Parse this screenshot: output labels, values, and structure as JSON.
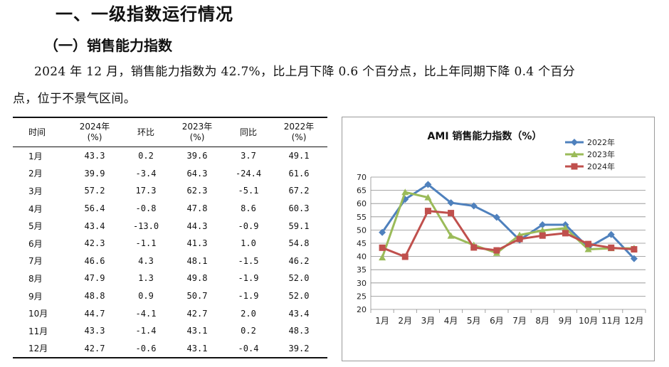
{
  "heading1": "一、一级指数运行情况",
  "heading2": "（一）销售能力指数",
  "paragraph_line1": "2024 年 12 月，销售能力指数为 42.7%，比上月下降 0.6 个百分点，比上年同期下降 0.4 个百分",
  "paragraph_line2": "点，位于不景气区间。",
  "table": {
    "headers": {
      "time": "时间",
      "y2024_a": "2024年",
      "y2024_b": "(%)",
      "mom": "环比",
      "y2023_a": "2023年",
      "y2023_b": "(%)",
      "yoy": "同比",
      "y2022_a": "2022年",
      "y2022_b": "(%)"
    },
    "rows": [
      {
        "month": "1月",
        "v2024": "43.3",
        "mom": "0.2",
        "v2023": "39.6",
        "yoy": "3.7",
        "v2022": "49.1"
      },
      {
        "month": "2月",
        "v2024": "39.9",
        "mom": "-3.4",
        "v2023": "64.3",
        "yoy": "-24.4",
        "v2022": "61.6"
      },
      {
        "month": "3月",
        "v2024": "57.2",
        "mom": "17.3",
        "v2023": "62.3",
        "yoy": "-5.1",
        "v2022": "67.2"
      },
      {
        "month": "4月",
        "v2024": "56.4",
        "mom": "-0.8",
        "v2023": "47.8",
        "yoy": "8.6",
        "v2022": "60.3"
      },
      {
        "month": "5月",
        "v2024": "43.4",
        "mom": "-13.0",
        "v2023": "44.3",
        "yoy": "-0.9",
        "v2022": "59.1"
      },
      {
        "month": "6月",
        "v2024": "42.3",
        "mom": "-1.1",
        "v2023": "41.3",
        "yoy": "1.0",
        "v2022": "54.8"
      },
      {
        "month": "7月",
        "v2024": "46.6",
        "mom": "4.3",
        "v2023": "48.1",
        "yoy": "-1.5",
        "v2022": "46.2"
      },
      {
        "month": "8月",
        "v2024": "47.9",
        "mom": "1.3",
        "v2023": "49.8",
        "yoy": "-1.9",
        "v2022": "52.0"
      },
      {
        "month": "9月",
        "v2024": "48.8",
        "mom": "0.9",
        "v2023": "50.7",
        "yoy": "-1.9",
        "v2022": "52.0"
      },
      {
        "month": "10月",
        "v2024": "44.7",
        "mom": "-4.1",
        "v2023": "42.7",
        "yoy": "2.0",
        "v2022": "43.4"
      },
      {
        "month": "11月",
        "v2024": "43.3",
        "mom": "-1.4",
        "v2023": "43.1",
        "yoy": "0.2",
        "v2022": "48.3"
      },
      {
        "month": "12月",
        "v2024": "42.7",
        "mom": "-0.6",
        "v2023": "43.1",
        "yoy": "-0.4",
        "v2022": "39.2"
      }
    ]
  },
  "chart_data": {
    "type": "line",
    "title": "AMI 销售能力指数（%）",
    "categories": [
      "1月",
      "2月",
      "3月",
      "4月",
      "5月",
      "6月",
      "7月",
      "8月",
      "9月",
      "10月",
      "11月",
      "12月"
    ],
    "series": [
      {
        "name": "2022年",
        "color": "#4f81bd",
        "marker": "diamond",
        "values": [
          49.1,
          61.6,
          67.2,
          60.3,
          59.1,
          54.8,
          46.2,
          52.0,
          52.0,
          43.4,
          48.3,
          39.2
        ]
      },
      {
        "name": "2023年",
        "color": "#9bbb59",
        "marker": "triangle",
        "values": [
          39.6,
          64.3,
          62.3,
          47.8,
          44.3,
          41.3,
          48.1,
          49.8,
          50.7,
          42.7,
          43.1,
          43.1
        ]
      },
      {
        "name": "2024年",
        "color": "#c0504d",
        "marker": "square",
        "values": [
          43.3,
          39.9,
          57.2,
          56.4,
          43.4,
          42.3,
          46.6,
          47.9,
          48.8,
          44.7,
          43.3,
          42.7
        ]
      }
    ],
    "ylim": [
      20,
      70
    ],
    "yticks": [
      "20",
      "25",
      "30",
      "35",
      "40",
      "45",
      "50",
      "55",
      "60",
      "65",
      "70"
    ],
    "grid": true,
    "legend": "top-right"
  }
}
